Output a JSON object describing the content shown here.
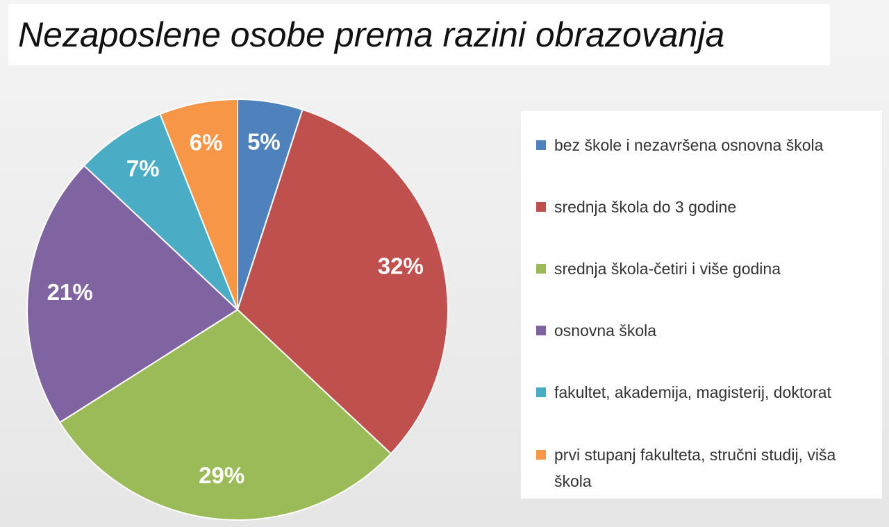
{
  "chart_data": {
    "type": "pie",
    "title": "Nezaposlene osobe prema razini obrazovanja",
    "categories": [
      "bez škole i nezavršena osnovna škola",
      "srednja škola do 3 godine",
      "srednja škola-četiri i više godina",
      "osnovna škola",
      "fakultet, akademija, magisterij, doktorat",
      "prvi stupanj fakulteta, stručni studij, viša škola"
    ],
    "values": [
      5,
      32,
      29,
      21,
      7,
      6
    ],
    "value_labels": [
      "5%",
      "32%",
      "29%",
      "21%",
      "7%",
      "6%"
    ],
    "colors": [
      "#4f81bd",
      "#c0504d",
      "#9bbb59",
      "#8064a2",
      "#4bacc6",
      "#f79646"
    ],
    "legend": "right"
  }
}
